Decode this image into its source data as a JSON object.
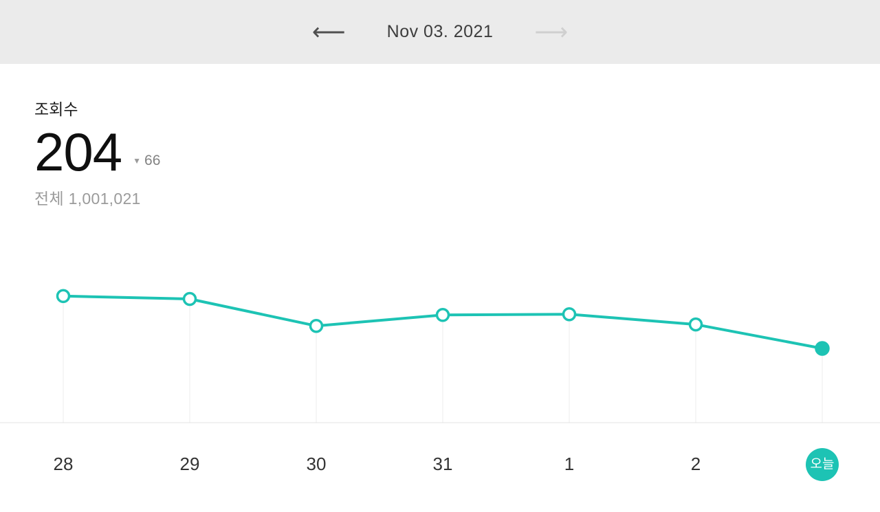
{
  "header": {
    "date": "Nov 03. 2021",
    "prev_icon": "⟵",
    "next_icon": "⟶"
  },
  "stats": {
    "label": "조회수",
    "value": "204",
    "delta_icon": "▼",
    "delta": "66",
    "total_label": "전체",
    "total_value": "1,001,021"
  },
  "colors": {
    "accent": "#1dc3b4",
    "header_bg": "#ebebeb",
    "gridline": "#ececec",
    "baseline": "#e3e3e3"
  },
  "chart_data": {
    "type": "line",
    "title": "조회수 (daily views)",
    "categories": [
      "28",
      "29",
      "30",
      "31",
      "1",
      "2",
      "오늘"
    ],
    "values": [
      348,
      340,
      266,
      296,
      298,
      270,
      204
    ],
    "xlabel": "",
    "ylabel": "",
    "ylim": [
      0,
      450
    ],
    "grid": "vertical-only",
    "legend": "none",
    "series_color": "#1dc3b4",
    "today_label": "오늘"
  }
}
